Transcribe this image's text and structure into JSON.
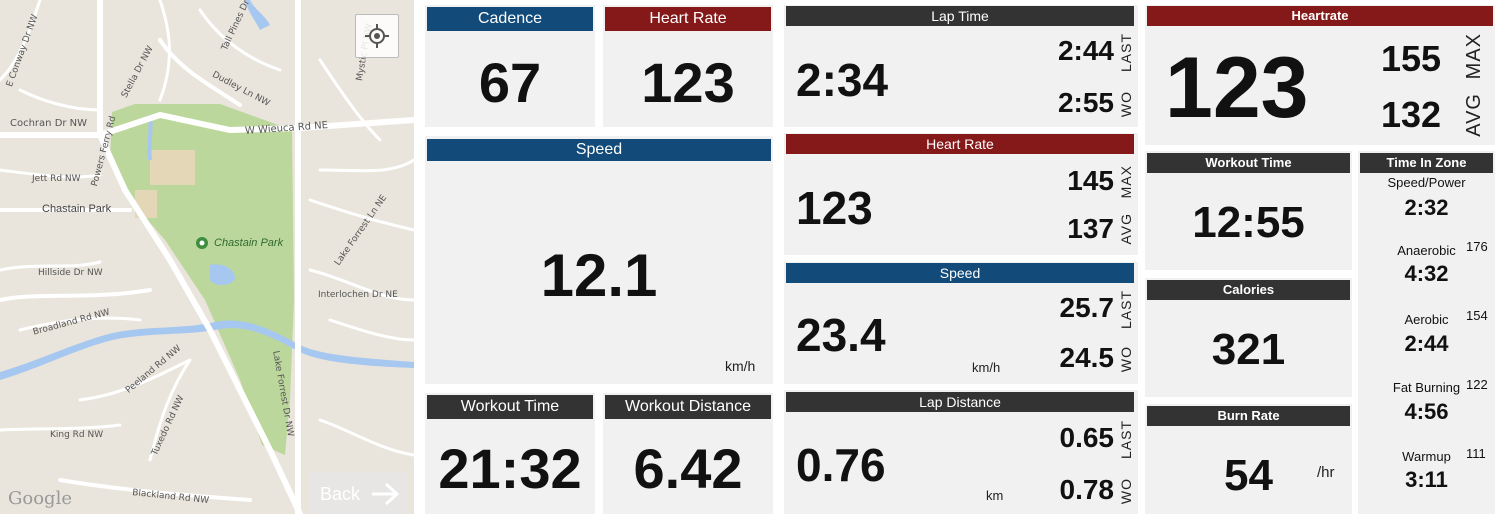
{
  "map": {
    "park_label": "Chastain Park",
    "area_label": "Chastain Park",
    "google_logo": "Google",
    "back_label": "Back",
    "back_icon": "arrow-right-icon",
    "locate_icon": "crosshair-icon",
    "roads": [
      {
        "label": "E Conway Dr NW"
      },
      {
        "label": "Stella Dr NW"
      },
      {
        "label": "Tall Pines Dr NW"
      },
      {
        "label": "Dudley Ln NW"
      },
      {
        "label": "Mystic Pl NW"
      },
      {
        "label": "Cochran Dr NW"
      },
      {
        "label": "Powers Ferry Rd"
      },
      {
        "label": "W Wieuca Rd NE"
      },
      {
        "label": "Jett Rd NW"
      },
      {
        "label": "Lake Forrest Ln NE"
      },
      {
        "label": "Hillside Dr NW"
      },
      {
        "label": "Interlochen Dr NE"
      },
      {
        "label": "Broadland Rd NW"
      },
      {
        "label": "Peeland Rd NW"
      },
      {
        "label": "Tuxedo Rd NW"
      },
      {
        "label": "Lake Forrest Dr NW"
      },
      {
        "label": "King Rd NW"
      },
      {
        "label": "Blackland Rd NW"
      }
    ]
  },
  "col1": {
    "cadence": {
      "label": "Cadence",
      "value": "67"
    },
    "heart_rate": {
      "label": "Heart Rate",
      "value": "123"
    },
    "speed": {
      "label": "Speed",
      "value": "12.1",
      "unit": "km/h"
    },
    "workout_time": {
      "label": "Workout Time",
      "value": "21:32"
    },
    "workout_distance": {
      "label": "Workout Distance",
      "value": "6.42"
    }
  },
  "col2": {
    "lap_time": {
      "label": "Lap Time",
      "value": "2:34",
      "last": "2:44",
      "last_label": "LAST",
      "wo": "2:55",
      "wo_label": "WO"
    },
    "heart_rate": {
      "label": "Heart Rate",
      "value": "123",
      "max": "145",
      "max_label": "MAX",
      "avg": "137",
      "avg_label": "AVG"
    },
    "speed": {
      "label": "Speed",
      "value": "23.4",
      "unit": "km/h",
      "last": "25.7",
      "last_label": "LAST",
      "wo": "24.5",
      "wo_label": "WO"
    },
    "lap_distance": {
      "label": "Lap Distance",
      "value": "0.76",
      "unit": "km",
      "last": "0.65",
      "last_label": "LAST",
      "wo": "0.78",
      "wo_label": "WO"
    }
  },
  "col3": {
    "heartrate": {
      "label": "Heartrate",
      "value": "123",
      "max": "155",
      "max_label": "MAX",
      "avg": "132",
      "avg_label": "AVG"
    },
    "workout_time": {
      "label": "Workout Time",
      "value": "12:55"
    },
    "calories": {
      "label": "Calories",
      "value": "321"
    },
    "burn_rate": {
      "label": "Burn Rate",
      "value": "54",
      "unit": "/hr"
    },
    "time_in_zone": {
      "label": "Time In Zone",
      "zones": [
        {
          "name": "Speed/Power",
          "time": "2:32",
          "bpm": ""
        },
        {
          "name": "Anaerobic",
          "time": "4:32",
          "bpm": "176"
        },
        {
          "name": "Aerobic",
          "time": "2:44",
          "bpm": "154"
        },
        {
          "name": "Fat Burning",
          "time": "4:56",
          "bpm": "122"
        },
        {
          "name": "Warmup",
          "time": "3:11",
          "bpm": "111"
        }
      ]
    }
  },
  "colors": {
    "blue": "#124a79",
    "red": "#851818",
    "dark": "#333333",
    "park": "#b9d79a",
    "water": "#a6c7f0"
  }
}
